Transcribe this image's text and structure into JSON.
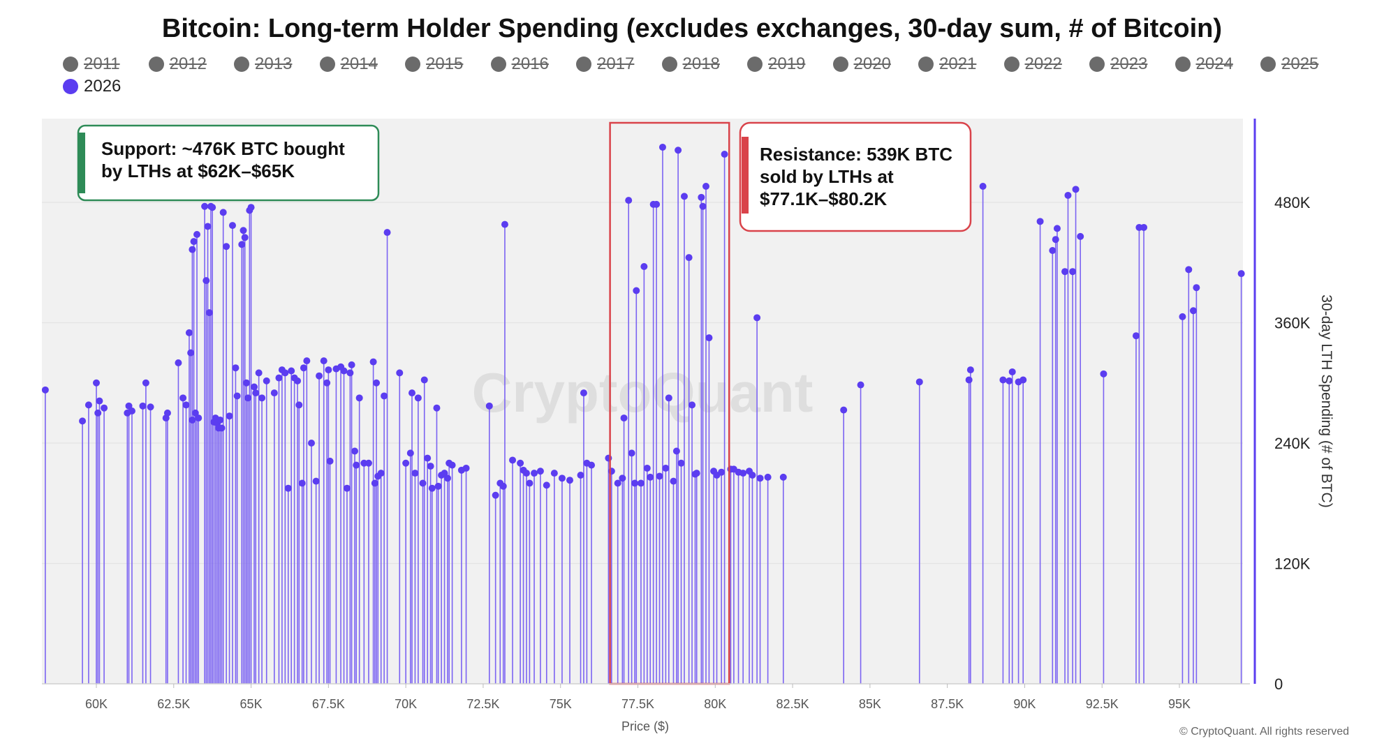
{
  "title": "Bitcoin: Long-term Holder Spending (excludes exchanges, 30-day sum, # of Bitcoin)",
  "legend": [
    {
      "label": "2011",
      "active": false
    },
    {
      "label": "2012",
      "active": false
    },
    {
      "label": "2013",
      "active": false
    },
    {
      "label": "2014",
      "active": false
    },
    {
      "label": "2015",
      "active": false
    },
    {
      "label": "2016",
      "active": false
    },
    {
      "label": "2017",
      "active": false
    },
    {
      "label": "2018",
      "active": false
    },
    {
      "label": "2019",
      "active": false
    },
    {
      "label": "2020",
      "active": false
    },
    {
      "label": "2021",
      "active": false
    },
    {
      "label": "2022",
      "active": false
    },
    {
      "label": "2023",
      "active": false
    },
    {
      "label": "2024",
      "active": false
    },
    {
      "label": "2025",
      "active": false
    },
    {
      "label": "2026",
      "active": true
    }
  ],
  "watermark": "CryptoQuant",
  "copyright": "© CryptoQuant. All rights reserved",
  "colors": {
    "series": "#5b3df0",
    "stem": "#7b63f2",
    "inactive": "#6b6b6b",
    "plot_bg": "#f1f1f1",
    "support": "#2e8b57",
    "resistance": "#d9434a"
  },
  "annotations": {
    "support": {
      "line1": "Support: ~476K BTC bought",
      "line2": "by LTHs at $62K–$65K"
    },
    "resistance": {
      "line1": "Resistance: 539K BTC",
      "line2": "sold by LTHs at",
      "line3": "$77.1K–$80.2K"
    }
  },
  "chart_data": {
    "type": "scatter",
    "title": "Bitcoin: Long-term Holder Spending (excludes exchanges, 30-day sum, # of Bitcoin)",
    "xlabel": "Price ($)",
    "ylabel": "30-day LTH Spending (# of BTC)",
    "xlim": [
      58100,
      97500
    ],
    "ylim": [
      0,
      565000
    ],
    "x_ticks": [
      {
        "value": 60000,
        "label": "60K"
      },
      {
        "value": 62500,
        "label": "62.5K"
      },
      {
        "value": 65000,
        "label": "65K"
      },
      {
        "value": 67500,
        "label": "67.5K"
      },
      {
        "value": 70000,
        "label": "70K"
      },
      {
        "value": 72500,
        "label": "72.5K"
      },
      {
        "value": 75000,
        "label": "75K"
      },
      {
        "value": 77500,
        "label": "77.5K"
      },
      {
        "value": 80000,
        "label": "80K"
      },
      {
        "value": 82500,
        "label": "82.5K"
      },
      {
        "value": 85000,
        "label": "85K"
      },
      {
        "value": 87500,
        "label": "87.5K"
      },
      {
        "value": 90000,
        "label": "90K"
      },
      {
        "value": 92500,
        "label": "92.5K"
      },
      {
        "value": 95000,
        "label": "95K"
      }
    ],
    "y_ticks": [
      {
        "value": 0,
        "label": "0"
      },
      {
        "value": 120000,
        "label": "120K"
      },
      {
        "value": 240000,
        "label": "240K"
      },
      {
        "value": 360000,
        "label": "360K"
      },
      {
        "value": 480000,
        "label": "480K"
      }
    ],
    "grid": true,
    "series": [
      {
        "name": "2026",
        "style": "stem",
        "points": [
          [
            58350,
            293000
          ],
          [
            59550,
            262000
          ],
          [
            59750,
            278000
          ],
          [
            60000,
            300000
          ],
          [
            60050,
            270000
          ],
          [
            60100,
            282000
          ],
          [
            60250,
            275000
          ],
          [
            61000,
            270000
          ],
          [
            61050,
            277000
          ],
          [
            61150,
            272000
          ],
          [
            61500,
            277000
          ],
          [
            61600,
            300000
          ],
          [
            61750,
            276000
          ],
          [
            62250,
            265000
          ],
          [
            62300,
            270000
          ],
          [
            62650,
            320000
          ],
          [
            62800,
            285000
          ],
          [
            62900,
            278000
          ],
          [
            63100,
            263000
          ],
          [
            63200,
            270000
          ],
          [
            63300,
            265000
          ],
          [
            63000,
            350000
          ],
          [
            63050,
            330000
          ],
          [
            63100,
            433000
          ],
          [
            63150,
            441000
          ],
          [
            63250,
            448000
          ],
          [
            63500,
            476000
          ],
          [
            63550,
            402000
          ],
          [
            63600,
            456000
          ],
          [
            63650,
            370000
          ],
          [
            63700,
            476000
          ],
          [
            63750,
            475000
          ],
          [
            63800,
            261000
          ],
          [
            63850,
            265000
          ],
          [
            63900,
            260000
          ],
          [
            63950,
            255000
          ],
          [
            64000,
            263000
          ],
          [
            64050,
            255000
          ],
          [
            64100,
            470000
          ],
          [
            64200,
            436000
          ],
          [
            64300,
            267000
          ],
          [
            64400,
            457000
          ],
          [
            64500,
            315000
          ],
          [
            64550,
            287000
          ],
          [
            64700,
            438000
          ],
          [
            64750,
            452000
          ],
          [
            64800,
            445000
          ],
          [
            64850,
            300000
          ],
          [
            64900,
            285000
          ],
          [
            64950,
            472000
          ],
          [
            65000,
            475000
          ],
          [
            65100,
            296000
          ],
          [
            65150,
            290000
          ],
          [
            65250,
            310000
          ],
          [
            65350,
            285000
          ],
          [
            65500,
            302000
          ],
          [
            65750,
            290000
          ],
          [
            65900,
            305000
          ],
          [
            66000,
            313000
          ],
          [
            66100,
            310000
          ],
          [
            66200,
            195000
          ],
          [
            66300,
            312000
          ],
          [
            66400,
            305000
          ],
          [
            66500,
            302000
          ],
          [
            66550,
            278000
          ],
          [
            66650,
            200000
          ],
          [
            66700,
            315000
          ],
          [
            66800,
            322000
          ],
          [
            66950,
            240000
          ],
          [
            67100,
            202000
          ],
          [
            67200,
            307000
          ],
          [
            67350,
            322000
          ],
          [
            67450,
            300000
          ],
          [
            67500,
            313000
          ],
          [
            67550,
            222000
          ],
          [
            67750,
            314000
          ],
          [
            67900,
            316000
          ],
          [
            68000,
            312000
          ],
          [
            68100,
            195000
          ],
          [
            68200,
            310000
          ],
          [
            68250,
            318000
          ],
          [
            68350,
            232000
          ],
          [
            68400,
            218000
          ],
          [
            68500,
            285000
          ],
          [
            68650,
            220000
          ],
          [
            68800,
            220000
          ],
          [
            68950,
            321000
          ],
          [
            69000,
            200000
          ],
          [
            69050,
            300000
          ],
          [
            69100,
            207000
          ],
          [
            69200,
            210000
          ],
          [
            69300,
            287000
          ],
          [
            69400,
            450000
          ],
          [
            69800,
            310000
          ],
          [
            70000,
            220000
          ],
          [
            70150,
            230000
          ],
          [
            70200,
            290000
          ],
          [
            70300,
            210000
          ],
          [
            70400,
            285000
          ],
          [
            70550,
            200000
          ],
          [
            70600,
            303000
          ],
          [
            70700,
            225000
          ],
          [
            70800,
            217000
          ],
          [
            70850,
            195000
          ],
          [
            71000,
            275000
          ],
          [
            71050,
            197000
          ],
          [
            71150,
            208000
          ],
          [
            71250,
            210000
          ],
          [
            71350,
            205000
          ],
          [
            71400,
            220000
          ],
          [
            71500,
            218000
          ],
          [
            71800,
            213000
          ],
          [
            71950,
            215000
          ],
          [
            72700,
            277000
          ],
          [
            72900,
            188000
          ],
          [
            73050,
            200000
          ],
          [
            73150,
            197000
          ],
          [
            73200,
            458000
          ],
          [
            73450,
            223000
          ],
          [
            73700,
            220000
          ],
          [
            73800,
            213000
          ],
          [
            73900,
            210000
          ],
          [
            74000,
            200000
          ],
          [
            74150,
            210000
          ],
          [
            74350,
            212000
          ],
          [
            74550,
            198000
          ],
          [
            74800,
            210000
          ],
          [
            75050,
            205000
          ],
          [
            75300,
            203000
          ],
          [
            75650,
            208000
          ],
          [
            75750,
            290000
          ],
          [
            75850,
            220000
          ],
          [
            76000,
            218000
          ],
          [
            76550,
            225000
          ],
          [
            76650,
            212000
          ],
          [
            76850,
            200000
          ],
          [
            77000,
            205000
          ],
          [
            77050,
            265000
          ],
          [
            77200,
            482000
          ],
          [
            77300,
            230000
          ],
          [
            77400,
            200000
          ],
          [
            77450,
            392000
          ],
          [
            77600,
            200000
          ],
          [
            77700,
            416000
          ],
          [
            77800,
            215000
          ],
          [
            77900,
            206000
          ],
          [
            78000,
            478000
          ],
          [
            78100,
            478000
          ],
          [
            78200,
            207000
          ],
          [
            78300,
            535000
          ],
          [
            78400,
            215000
          ],
          [
            78500,
            285000
          ],
          [
            78650,
            202000
          ],
          [
            78750,
            232000
          ],
          [
            78800,
            532000
          ],
          [
            78900,
            220000
          ],
          [
            79000,
            486000
          ],
          [
            79150,
            425000
          ],
          [
            79250,
            278000
          ],
          [
            79350,
            209000
          ],
          [
            79400,
            210000
          ],
          [
            79550,
            485000
          ],
          [
            79600,
            476000
          ],
          [
            79700,
            496000
          ],
          [
            79800,
            345000
          ],
          [
            79950,
            212000
          ],
          [
            80050,
            208000
          ],
          [
            80200,
            211000
          ],
          [
            80300,
            528000
          ],
          [
            80500,
            214000
          ],
          [
            80600,
            214000
          ],
          [
            80750,
            211000
          ],
          [
            80900,
            210000
          ],
          [
            81100,
            212000
          ],
          [
            81200,
            208000
          ],
          [
            81350,
            365000
          ],
          [
            81450,
            205000
          ],
          [
            81700,
            206000
          ],
          [
            82200,
            206000
          ],
          [
            84150,
            273000
          ],
          [
            84700,
            298000
          ],
          [
            86600,
            301000
          ],
          [
            88200,
            303000
          ],
          [
            88250,
            313000
          ],
          [
            88650,
            496000
          ],
          [
            89300,
            303000
          ],
          [
            89500,
            302000
          ],
          [
            89600,
            311000
          ],
          [
            89800,
            301000
          ],
          [
            89950,
            303000
          ],
          [
            90500,
            461000
          ],
          [
            90900,
            432000
          ],
          [
            91000,
            443000
          ],
          [
            91050,
            454000
          ],
          [
            91300,
            411000
          ],
          [
            91400,
            487000
          ],
          [
            91550,
            411000
          ],
          [
            91650,
            493000
          ],
          [
            91800,
            446000
          ],
          [
            92550,
            309000
          ],
          [
            93600,
            347000
          ],
          [
            93700,
            455000
          ],
          [
            93850,
            455000
          ],
          [
            95100,
            366000
          ],
          [
            95300,
            413000
          ],
          [
            95450,
            372000
          ],
          [
            95550,
            395000
          ],
          [
            97000,
            409000
          ]
        ]
      }
    ],
    "annotation_boxes": [
      {
        "type": "highlight",
        "x_range": [
          76600,
          80450
        ],
        "y_range": [
          0,
          560000
        ],
        "color": "#d9434a"
      }
    ]
  }
}
